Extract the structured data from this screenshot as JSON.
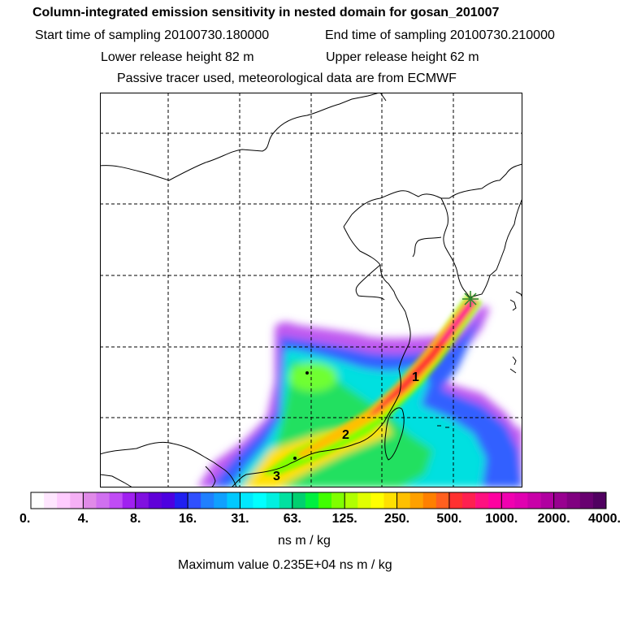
{
  "header": {
    "title": "Column-integrated emission sensitivity in nested domain for gosan_201007",
    "start_time_label": "Start time of sampling 20100730.180000",
    "end_time_label": "End time of sampling 20100730.210000",
    "lower_height_label": "Lower release height   82 m",
    "upper_height_label": "Upper release height   62 m",
    "tracer_note": "Passive tracer used, meteorological data are from ECMWF"
  },
  "map": {
    "path_labels": [
      "1",
      "2",
      "3"
    ],
    "receptor_icon": "star-receptor-icon"
  },
  "colorbar": {
    "tick_labels": [
      "0.",
      "4.",
      "8.",
      "16.",
      "31.",
      "63.",
      "125.",
      "250.",
      "500.",
      "1000.",
      "2000.",
      "4000."
    ],
    "colors": [
      "#ffffff",
      "#ffe6ff",
      "#ffccff",
      "#f5b0f5",
      "#e08ae8",
      "#d070f0",
      "#c04cf5",
      "#a020f0",
      "#8010e0",
      "#6000d8",
      "#4d00e0",
      "#2020f0",
      "#3050ff",
      "#2080ff",
      "#10a0ff",
      "#00c8ff",
      "#00e8ff",
      "#00ffff",
      "#00f0e0",
      "#00e0a0",
      "#00d070",
      "#00f040",
      "#40ff00",
      "#80ff00",
      "#b0ff00",
      "#e0ff00",
      "#ffff00",
      "#ffe000",
      "#ffc000",
      "#ffa000",
      "#ff8000",
      "#ff6020",
      "#ff3030",
      "#ff2050",
      "#ff1080",
      "#ff00a0",
      "#f000b0",
      "#e000b0",
      "#c800a8",
      "#b000a0",
      "#980090",
      "#800080",
      "#680070",
      "#500060"
    ],
    "unit": "ns m / kg"
  },
  "footer": {
    "max_value_label": "Maximum value  0.235E+04 ns m / kg"
  }
}
